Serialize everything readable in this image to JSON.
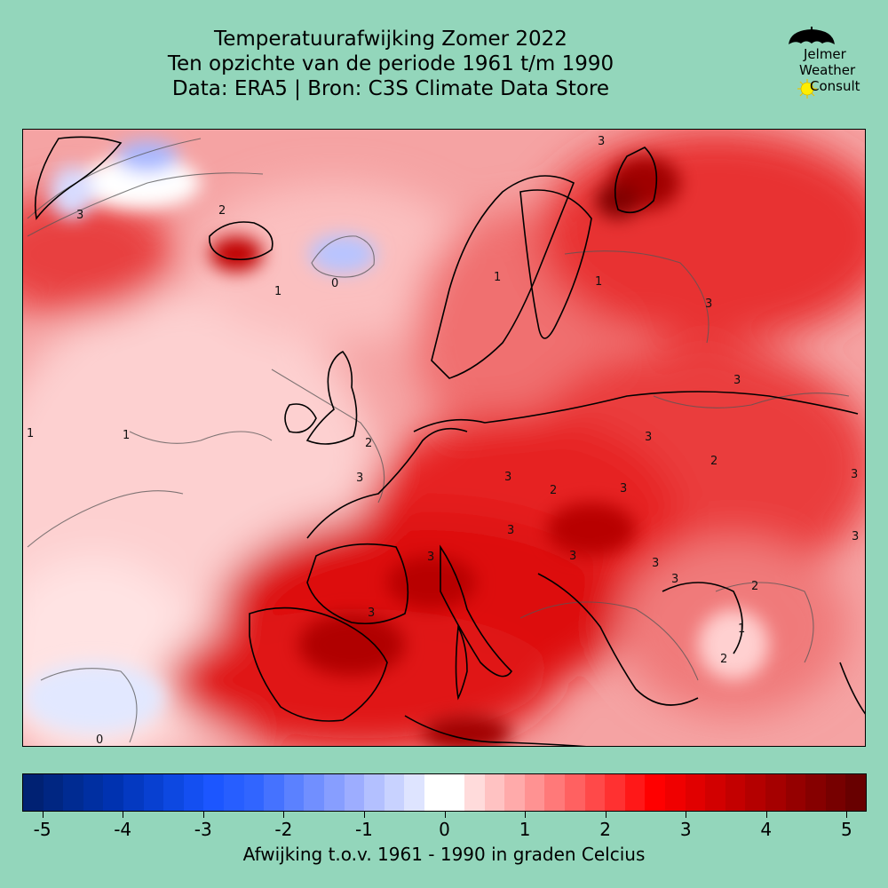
{
  "title": {
    "line1": "Temperatuurafwijking Zomer 2022",
    "line2": "Ten opzichte van de periode 1961 t/m 1990",
    "line3": "Data: ERA5 | Bron: C3S Climate Data Store"
  },
  "logo": {
    "line1": "Jelmer",
    "line2": "Weather",
    "line3": "Consult"
  },
  "colorbar": {
    "label": "Afwijking t.o.v. 1961 - 1990 in graden Celcius",
    "min": -5.25,
    "max": 5.25,
    "step": 0.25,
    "ticks": [
      "-5",
      "-4",
      "-3",
      "-2",
      "-1",
      "0",
      "1",
      "2",
      "3",
      "4",
      "5"
    ],
    "tick_values": [
      -5,
      -4,
      -3,
      -2,
      -1,
      0,
      1,
      2,
      3,
      4,
      5
    ],
    "colors": [
      "#001f6b",
      "#002a8f",
      "#0033b3",
      "#0a44d9",
      "#1a55ff",
      "#3366ff",
      "#6688ff",
      "#99aaff",
      "#ccd5ff",
      "#ffffff",
      "#ffcccc",
      "#ff9999",
      "#ff6666",
      "#ff3333",
      "#ff0000",
      "#e00000",
      "#c00000",
      "#a00000",
      "#800000",
      "#600000"
    ]
  },
  "map": {
    "contour_labels": [
      "3",
      "3",
      "0",
      "1",
      "1",
      "1",
      "3",
      "2",
      "3",
      "2",
      "3",
      "3",
      "3",
      "3",
      "3",
      "2",
      "3",
      "3",
      "3",
      "3",
      "3",
      "3",
      "2",
      "1",
      "2",
      "3",
      "0",
      "1",
      "1",
      "2"
    ]
  }
}
